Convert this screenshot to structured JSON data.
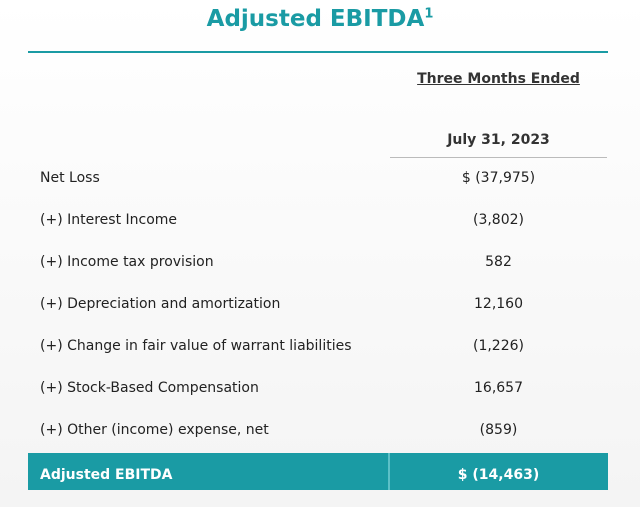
{
  "header": {
    "title": "Adjusted EBITDA",
    "title_footnote": "1"
  },
  "table": {
    "column_header": "Three Months Ended",
    "column_date": "July 31, 2023",
    "rows": [
      [
        "Net Loss",
        "$ (37,975)"
      ],
      [
        "(+) Interest Income",
        "(3,802)"
      ],
      [
        "(+) Income tax provision",
        "582"
      ],
      [
        "(+) Depreciation and amortization",
        "12,160"
      ],
      [
        "(+) Change in fair value of warrant liabilities",
        "(1,226)"
      ],
      [
        "(+) Stock-Based Compensation",
        "16,657"
      ],
      [
        "(+) Other (income) expense, net",
        "(859)"
      ]
    ],
    "total": [
      "Adjusted EBITDA",
      "$ (14,463)"
    ]
  }
}
